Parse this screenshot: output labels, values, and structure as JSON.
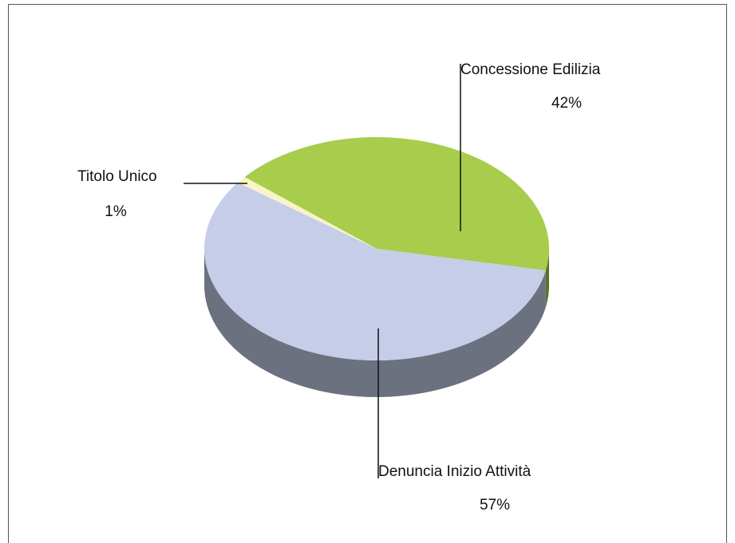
{
  "chart_data": {
    "type": "pie",
    "categories": [
      "Concessione Edilizia",
      "Denuncia Inizio Attività",
      "Titolo Unico"
    ],
    "values": [
      42,
      57,
      1
    ],
    "value_labels": [
      "42%",
      "57%",
      "1%"
    ],
    "colors": [
      "#a8cc4c",
      "#c5cde8",
      "#f8f4c8"
    ]
  }
}
